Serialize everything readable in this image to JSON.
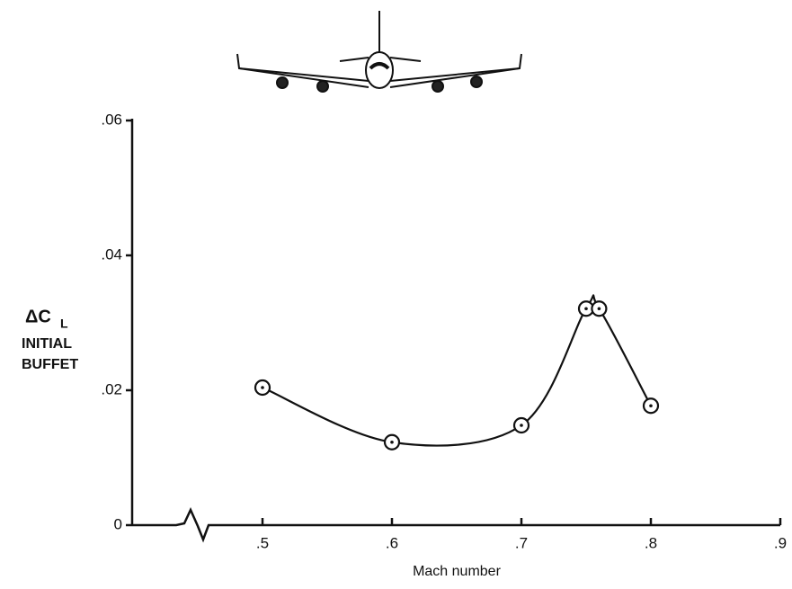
{
  "chart_data": {
    "type": "line",
    "ylabel": {
      "symbol": "ΔC",
      "subscript": "L",
      "lines": [
        "INITIAL",
        "BUFFET"
      ]
    },
    "xlabel": "Mach number",
    "x": [
      0.5,
      0.6,
      0.7,
      0.75,
      0.76,
      0.8
    ],
    "series": [
      {
        "color": "#111111",
        "values": [
          0.0204,
          0.0123,
          0.0148,
          0.0321,
          0.0321,
          0.0177
        ]
      }
    ],
    "xlim": [
      0.4,
      0.9
    ],
    "ylim": [
      0,
      0.06
    ],
    "xticks": [
      {
        "value": 0.5,
        "label": ".5"
      },
      {
        "value": 0.6,
        "label": ".6"
      },
      {
        "value": 0.7,
        "label": ".7"
      },
      {
        "value": 0.8,
        "label": ".8"
      },
      {
        "value": 0.9,
        "label": ".9"
      }
    ],
    "yticks": [
      0,
      {
        "value": 0.02,
        "label": ".02"
      },
      {
        "value": 0.04,
        "label": ".04"
      },
      {
        "value": 0.06,
        "label": ".06"
      }
    ]
  }
}
